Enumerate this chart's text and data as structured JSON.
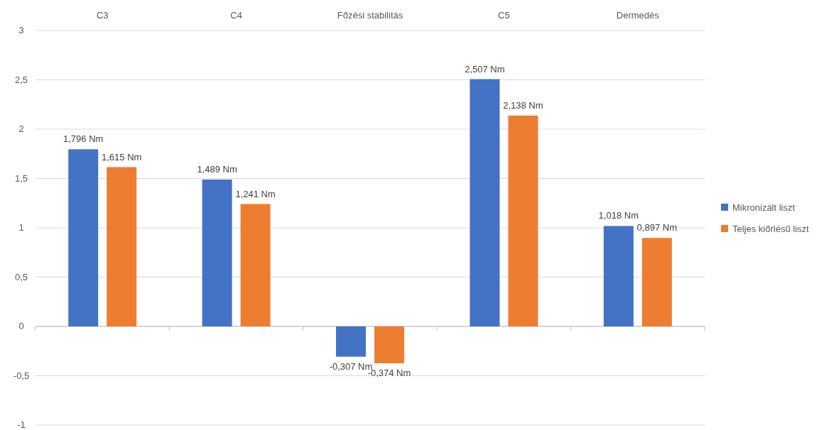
{
  "chart_data": {
    "type": "bar",
    "categories": [
      "C3",
      "C4",
      "Főzési stabilitás",
      "C5",
      "Dermedés"
    ],
    "series": [
      {
        "name": "Mikronizált liszt",
        "color": "#4472c4",
        "values": [
          1.796,
          1.489,
          -0.307,
          2.507,
          1.018
        ],
        "value_labels": [
          "1,796 Nm",
          "1,489 Nm",
          "-0,307 Nm",
          "2,507 Nm",
          "1,018 Nm"
        ]
      },
      {
        "name": "Teljes kiőrlésű liszt",
        "color": "#ed7d31",
        "values": [
          1.615,
          1.241,
          -0.374,
          2.138,
          0.897
        ],
        "value_labels": [
          "1,615 Nm",
          "1,241 Nm",
          "-0,374 Nm",
          "2,138 Nm",
          "0,897 Nm"
        ]
      }
    ],
    "ylim": [
      -1,
      3
    ],
    "yticks": [
      {
        "value": -1,
        "label": "-1"
      },
      {
        "value": -0.5,
        "label": "-0,5"
      },
      0,
      {
        "value": 0.5,
        "label": "0,5"
      },
      1,
      {
        "value": 1.5,
        "label": "1,5"
      },
      2,
      {
        "value": 2.5,
        "label": "2,5"
      },
      3
    ],
    "grid": "y",
    "legend": "right"
  }
}
